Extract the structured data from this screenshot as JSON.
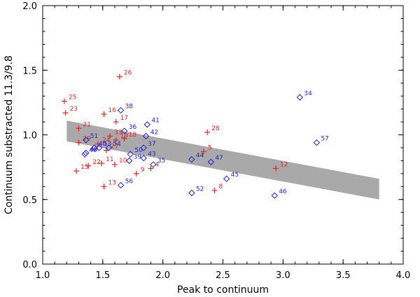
{
  "chart_data": {
    "type": "scatter",
    "title": "",
    "xlabel": "Peak to continuum",
    "ylabel": "Continuum substracted 11.3/9.8",
    "xlim": [
      1.0,
      4.0
    ],
    "ylim": [
      0.0,
      2.0
    ],
    "x_ticks": [
      "1.0",
      "1.5",
      "2.0",
      "2.5",
      "3.0",
      "3.5",
      "4.0"
    ],
    "y_ticks": [
      "0.0",
      "0.5",
      "1.0",
      "1.5",
      "2.0"
    ],
    "band": {
      "color": "#a9a9a9",
      "description_polygon": [
        [
          1.2,
          1.11
        ],
        [
          3.8,
          0.66
        ],
        [
          3.8,
          0.5
        ],
        [
          1.2,
          0.95
        ]
      ]
    },
    "series": [
      {
        "name": "plus",
        "marker": "plus",
        "color": "#e8231f",
        "points": [
          {
            "label": "4",
            "x": 1.9,
            "y": 0.74
          },
          {
            "label": "5",
            "x": 2.34,
            "y": 0.87
          },
          {
            "label": "8",
            "x": 2.43,
            "y": 0.57
          },
          {
            "label": "9",
            "x": 1.78,
            "y": 0.7
          },
          {
            "label": "10",
            "x": 1.6,
            "y": 0.77
          },
          {
            "label": "11",
            "x": 1.49,
            "y": 0.78
          },
          {
            "label": "12",
            "x": 2.94,
            "y": 0.74
          },
          {
            "label": "13",
            "x": 1.51,
            "y": 0.6
          },
          {
            "label": "15",
            "x": 1.28,
            "y": 0.72
          },
          {
            "label": "16",
            "x": 1.51,
            "y": 1.16
          },
          {
            "label": "17",
            "x": 1.61,
            "y": 1.1
          },
          {
            "label": "18",
            "x": 1.68,
            "y": 0.97
          },
          {
            "label": "19",
            "x": 1.61,
            "y": 0.96
          },
          {
            "label": "21",
            "x": 1.3,
            "y": 1.05
          },
          {
            "label": "22",
            "x": 1.38,
            "y": 0.76
          },
          {
            "label": "23",
            "x": 1.19,
            "y": 1.17
          },
          {
            "label": "24",
            "x": 1.46,
            "y": 0.93
          },
          {
            "label": "25",
            "x": 1.18,
            "y": 1.26
          },
          {
            "label": "26",
            "x": 1.64,
            "y": 1.45
          },
          {
            "label": "27",
            "x": 1.53,
            "y": 0.88
          },
          {
            "label": "28",
            "x": 2.37,
            "y": 1.02
          },
          {
            "label": "29",
            "x": 1.3,
            "y": 0.94
          },
          {
            "label": "33",
            "x": 1.56,
            "y": 0.99
          }
        ]
      },
      {
        "name": "diamond",
        "marker": "diamond",
        "color": "#1f1fe0",
        "points": [
          {
            "label": "34",
            "x": 3.14,
            "y": 1.29
          },
          {
            "label": "35",
            "x": 1.92,
            "y": 0.77
          },
          {
            "label": "36",
            "x": 1.68,
            "y": 1.03
          },
          {
            "label": "37",
            "x": 1.84,
            "y": 0.9
          },
          {
            "label": "38",
            "x": 1.65,
            "y": 1.19
          },
          {
            "label": "39",
            "x": 1.72,
            "y": 0.8
          },
          {
            "label": "40",
            "x": 1.43,
            "y": 0.9
          },
          {
            "label": "41",
            "x": 1.87,
            "y": 1.08
          },
          {
            "label": "42",
            "x": 1.86,
            "y": 0.99
          },
          {
            "label": "43",
            "x": 1.84,
            "y": 0.82
          },
          {
            "label": "44",
            "x": 2.24,
            "y": 0.81
          },
          {
            "label": "45",
            "x": 2.53,
            "y": 0.66
          },
          {
            "label": "46",
            "x": 2.93,
            "y": 0.53
          },
          {
            "label": "47",
            "x": 2.4,
            "y": 0.79
          },
          {
            "label": "48",
            "x": 1.35,
            "y": 0.85
          },
          {
            "label": "49",
            "x": 1.36,
            "y": 0.86
          },
          {
            "label": "50",
            "x": 1.73,
            "y": 0.85
          },
          {
            "label": "51",
            "x": 1.36,
            "y": 0.96
          },
          {
            "label": "52",
            "x": 2.24,
            "y": 0.55
          },
          {
            "label": "53",
            "x": 1.47,
            "y": 0.9
          },
          {
            "label": "54",
            "x": 1.55,
            "y": 0.9
          },
          {
            "label": "56",
            "x": 1.65,
            "y": 0.61
          },
          {
            "label": "57",
            "x": 3.28,
            "y": 0.94
          }
        ]
      }
    ]
  }
}
